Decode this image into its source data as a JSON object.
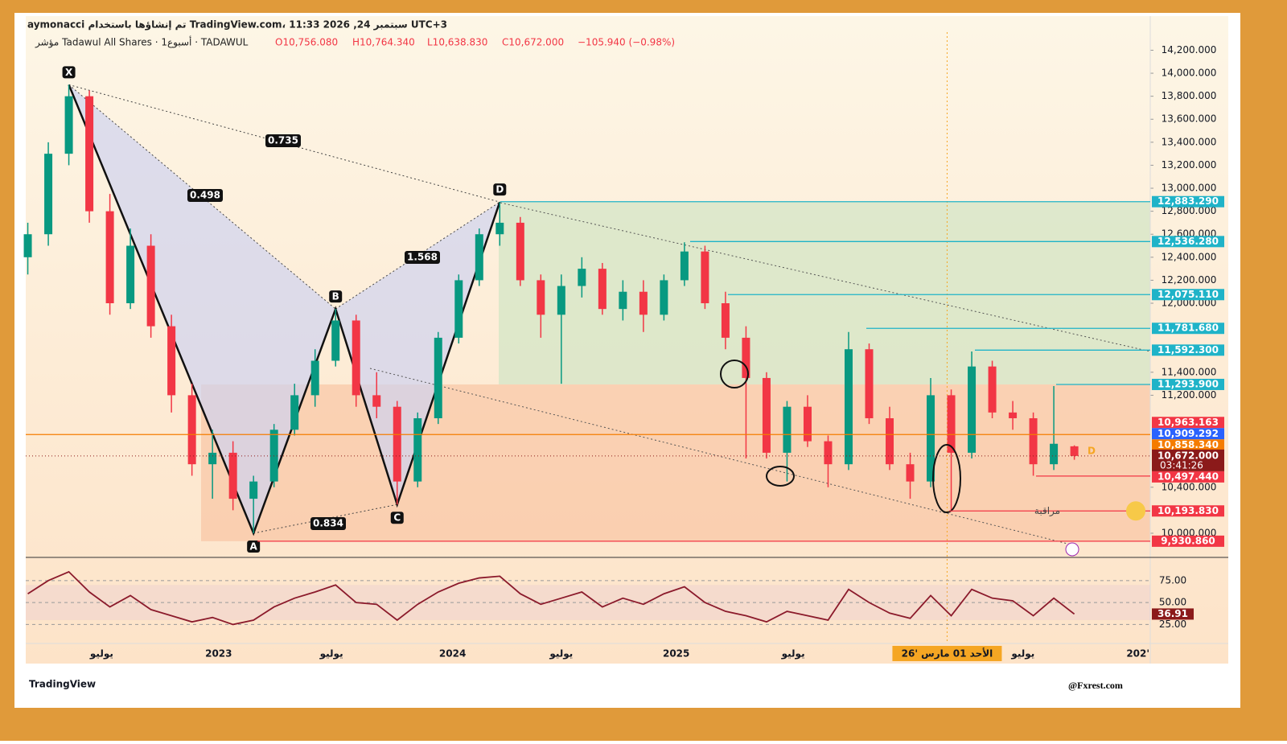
{
  "header": {
    "credit": "aymonacci تم إنشاؤها باستخدام TradingView.com، 11:33 2026 ,24 سبتمبر UTC+3",
    "symbol": "مؤشر Tadawul All Shares · 1أسبوع · TADAWUL",
    "open": "O10,756.080",
    "high": "H10,764.340",
    "low": "L10,638.830",
    "close": "C10,672.000",
    "change": "−105.940 (−0.98%)"
  },
  "chart_data": {
    "type": "candlestick",
    "up_color": "#089981",
    "down_color": "#f23645",
    "candles": [
      [
        12400,
        12700,
        12250,
        12600
      ],
      [
        12600,
        13400,
        12500,
        13300
      ],
      [
        13300,
        13900,
        13200,
        13800
      ],
      [
        13800,
        13850,
        12700,
        12800
      ],
      [
        12800,
        12950,
        11900,
        12000
      ],
      [
        12000,
        12650,
        11950,
        12500
      ],
      [
        12500,
        12600,
        11700,
        11800
      ],
      [
        11800,
        11900,
        11050,
        11200
      ],
      [
        11200,
        11300,
        10500,
        10600
      ],
      [
        10600,
        10900,
        10300,
        10700
      ],
      [
        10700,
        10800,
        10200,
        10300
      ],
      [
        10300,
        10500,
        10000,
        10450
      ],
      [
        10450,
        10950,
        10400,
        10900
      ],
      [
        10900,
        11300,
        10850,
        11200
      ],
      [
        11200,
        11600,
        11100,
        11500
      ],
      [
        11500,
        11950,
        11450,
        11850
      ],
      [
        11850,
        11900,
        11100,
        11200
      ],
      [
        11200,
        11400,
        11000,
        11100
      ],
      [
        11100,
        11150,
        10250,
        10450
      ],
      [
        10450,
        11050,
        10400,
        11000
      ],
      [
        11000,
        11750,
        10950,
        11700
      ],
      [
        11700,
        12250,
        11650,
        12200
      ],
      [
        12200,
        12650,
        12150,
        12600
      ],
      [
        12600,
        12880,
        12500,
        12700
      ],
      [
        12700,
        12750,
        12150,
        12200
      ],
      [
        12200,
        12250,
        11700,
        11900
      ],
      [
        11900,
        12250,
        11300,
        12150
      ],
      [
        12150,
        12400,
        12050,
        12300
      ],
      [
        12300,
        12350,
        11900,
        11950
      ],
      [
        11950,
        12200,
        11850,
        12100
      ],
      [
        12100,
        12200,
        11750,
        11900
      ],
      [
        11900,
        12250,
        11850,
        12200
      ],
      [
        12200,
        12530,
        12150,
        12450
      ],
      [
        12450,
        12500,
        11950,
        12000
      ],
      [
        12000,
        12100,
        11600,
        11700
      ],
      [
        11700,
        11800,
        10650,
        11350
      ],
      [
        11350,
        11400,
        10650,
        10700
      ],
      [
        10700,
        11150,
        10450,
        11100
      ],
      [
        11100,
        11200,
        10750,
        10800
      ],
      [
        10800,
        10850,
        10400,
        10600
      ],
      [
        10600,
        11750,
        10550,
        11600
      ],
      [
        11600,
        11650,
        10950,
        11000
      ],
      [
        11000,
        11100,
        10550,
        10600
      ],
      [
        10600,
        10700,
        10300,
        10450
      ],
      [
        10450,
        11350,
        10400,
        11200
      ],
      [
        11200,
        11250,
        10200,
        10700
      ],
      [
        10700,
        11580,
        10650,
        11450
      ],
      [
        11450,
        11500,
        11000,
        11050
      ],
      [
        11050,
        11150,
        10900,
        11000
      ],
      [
        11000,
        11050,
        10500,
        10600
      ],
      [
        10600,
        11280,
        10550,
        10778
      ],
      [
        10756.08,
        10764.34,
        10638.83,
        10672
      ]
    ],
    "xlim": [
      -0.1,
      54.7
    ],
    "ylim": [
      9790,
      14357
    ],
    "xticks": [
      {
        "value": 3.6,
        "label": "يوليو"
      },
      {
        "value": 9.3,
        "label": "2023"
      },
      {
        "value": 14.8,
        "label": "يوليو"
      },
      {
        "value": 20.7,
        "label": "2024"
      },
      {
        "value": 26,
        "label": "يوليو"
      },
      {
        "value": 31.6,
        "label": "2025"
      },
      {
        "value": 37.3,
        "label": "يوليو"
      },
      {
        "value": 48.5,
        "label": "يوليو"
      },
      {
        "value": 54.1,
        "label": "202'"
      }
    ],
    "date_marker": {
      "value": 44.8,
      "label": "الأحد 01 مارس '26"
    },
    "yticks": [
      {
        "value": 14200,
        "label": "14,200.000"
      },
      {
        "value": 14000,
        "label": "14,000.000"
      },
      {
        "value": 13800,
        "label": "13,800.000"
      },
      {
        "value": 13600,
        "label": "13,600.000"
      },
      {
        "value": 13400,
        "label": "13,400.000"
      },
      {
        "value": 13200,
        "label": "13,200.000"
      },
      {
        "value": 13000,
        "label": "13,000.000"
      },
      {
        "value": 12800,
        "label": "12,800.000"
      },
      {
        "value": 12600,
        "label": "12,600.000"
      },
      {
        "value": 12400,
        "label": "12,400.000"
      },
      {
        "value": 12200,
        "label": "12,200.000"
      },
      {
        "value": 12000,
        "label": "12,000.000"
      },
      {
        "value": 11400,
        "label": "11,400.000"
      },
      {
        "value": 11200,
        "label": "11,200.000"
      },
      {
        "value": 10400,
        "label": "10,400.000"
      },
      {
        "value": 10000,
        "label": "10,000.000"
      }
    ],
    "levels": [
      {
        "value": 12883.29,
        "label": "12,883.290",
        "color": "#1fb3c8"
      },
      {
        "value": 12536.28,
        "label": "12,536.280",
        "color": "#1fb3c8"
      },
      {
        "value": 12075.11,
        "label": "12,075.110",
        "color": "#1fb3c8"
      },
      {
        "value": 11781.68,
        "label": "11,781.680",
        "color": "#1fb3c8"
      },
      {
        "value": 11592.3,
        "label": "11,592.300",
        "color": "#1fb3c8"
      },
      {
        "value": 11293.9,
        "label": "11,293.900",
        "color": "#1fb3c8"
      },
      {
        "value": 10963.163,
        "label": "10,963.163",
        "color": "#f23645"
      },
      {
        "value": 10909.292,
        "label": "10,909.292",
        "color": "#2962ff"
      },
      {
        "value": 10858.34,
        "label": "10,858.340",
        "color": "#f57c00"
      },
      {
        "value": 10497.44,
        "label": "10,497.440",
        "color": "#f23645"
      },
      {
        "value": 10193.83,
        "label": "10,193.830",
        "color": "#f23645"
      },
      {
        "value": 9930.86,
        "label": "9,930.860",
        "color": "#f23645"
      }
    ],
    "current": {
      "value": 10672,
      "label": "10,672.000",
      "countdown": "03:41:26",
      "color": "#8b1a1a"
    },
    "watch_label": "مراقبة",
    "d_marker": "D",
    "pattern": {
      "points": [
        {
          "label": "X",
          "index": 2,
          "value": 13900
        },
        {
          "label": "A",
          "index": 11,
          "value": 10000
        },
        {
          "label": "B",
          "index": 15,
          "value": 11950
        },
        {
          "label": "C",
          "index": 18,
          "value": 10250
        },
        {
          "label": "D",
          "index": 23,
          "value": 12880
        }
      ],
      "ratios": [
        0.498,
        0.735,
        1.568,
        0.834
      ]
    },
    "rsi": {
      "color": "#8b1a2b",
      "values": [
        60,
        75,
        85,
        62,
        45,
        58,
        42,
        35,
        28,
        33,
        25,
        30,
        45,
        55,
        62,
        70,
        50,
        48,
        30,
        48,
        62,
        72,
        78,
        80,
        60,
        48,
        55,
        62,
        45,
        55,
        48,
        60,
        68,
        50,
        40,
        35,
        28,
        40,
        35,
        30,
        65,
        50,
        38,
        32,
        58,
        35,
        65,
        55,
        52,
        35,
        55,
        36.91
      ],
      "ylim": [
        8,
        95
      ],
      "yticks": [
        {
          "value": 75,
          "label": "75.00"
        },
        {
          "value": 50,
          "label": "50.00"
        },
        {
          "value": 25,
          "label": "25.00"
        }
      ]
    }
  },
  "footer": {
    "logo": "TradingView",
    "watermark": "@Fxrest.com"
  }
}
